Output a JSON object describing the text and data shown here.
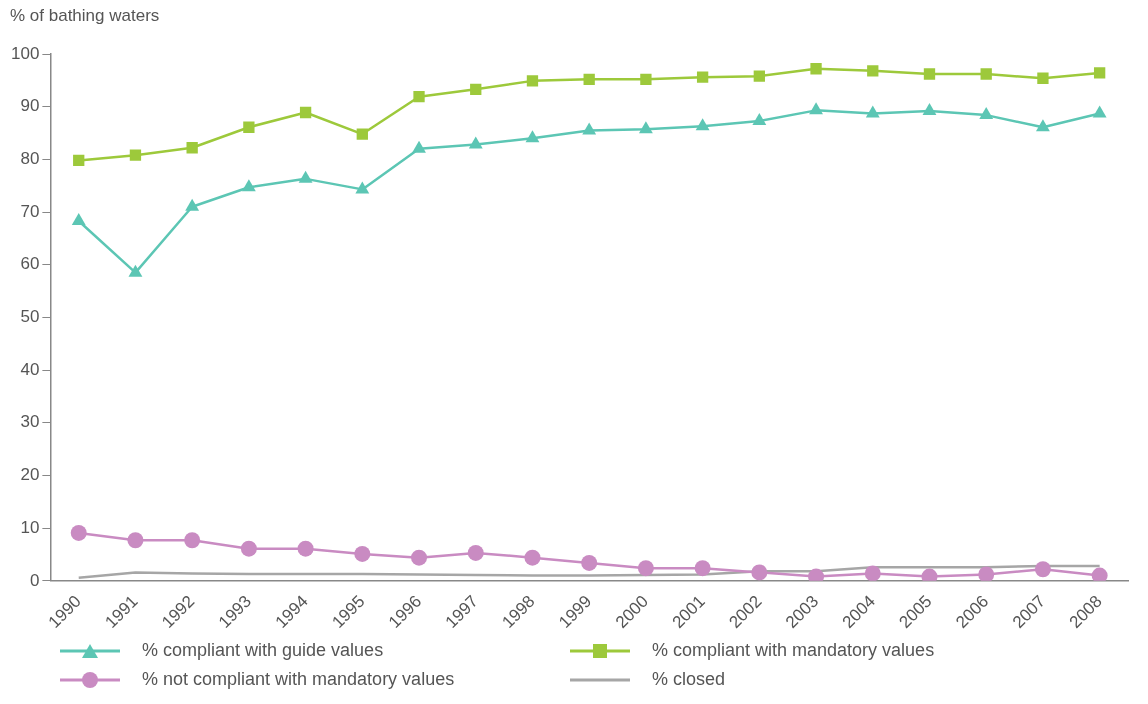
{
  "chart_data": {
    "type": "line",
    "ylabel": "% of bathing waters",
    "categories": [
      "1990",
      "1991",
      "1992",
      "1993",
      "1994",
      "1995",
      "1996",
      "1997",
      "1998",
      "1999",
      "2000",
      "2001",
      "2002",
      "2003",
      "2004",
      "2005",
      "2006",
      "2007",
      "2008"
    ],
    "series": [
      {
        "name": "% compliant with guide values",
        "color": "#5cc6b4",
        "marker": "triangle",
        "values": [
          68.3,
          58.5,
          71,
          74.7,
          76.3,
          74.3,
          82,
          82.8,
          84,
          85.5,
          85.7,
          86.3,
          87.3,
          89.3,
          88.7,
          89.2,
          88.4,
          86.1,
          88.7
        ]
      },
      {
        "name": "% compliant with mandatory values",
        "color": "#9dc93b",
        "marker": "square",
        "values": [
          79.8,
          80.8,
          82.2,
          86.1,
          88.9,
          84.8,
          91.9,
          93.3,
          94.9,
          95.2,
          95.2,
          95.6,
          95.8,
          97.2,
          96.8,
          96.2,
          96.2,
          95.4,
          96.4
        ]
      },
      {
        "name": "% not compliant with mandatory values",
        "color": "#c98bc2",
        "marker": "circle",
        "values": [
          9.1,
          7.7,
          7.7,
          6.1,
          6.1,
          5.1,
          4.4,
          5.3,
          4.4,
          3.4,
          2.4,
          2.4,
          1.6,
          0.8,
          1.4,
          0.8,
          1.2,
          2.2,
          1
        ]
      },
      {
        "name": "% closed",
        "color": "#a6a6a6",
        "marker": "none",
        "values": [
          0.6,
          1.6,
          1.4,
          1.3,
          1.3,
          1.3,
          1.2,
          1.1,
          1,
          1,
          1.1,
          1.2,
          1.8,
          1.8,
          2.6,
          2.6,
          2.6,
          2.8,
          2.8
        ]
      }
    ],
    "ylim": [
      0,
      100
    ],
    "yticks": [
      0,
      10,
      20,
      30,
      40,
      50,
      60,
      70,
      80,
      90,
      100
    ],
    "grid": false,
    "legend": "bottom",
    "line_style": "solid"
  }
}
